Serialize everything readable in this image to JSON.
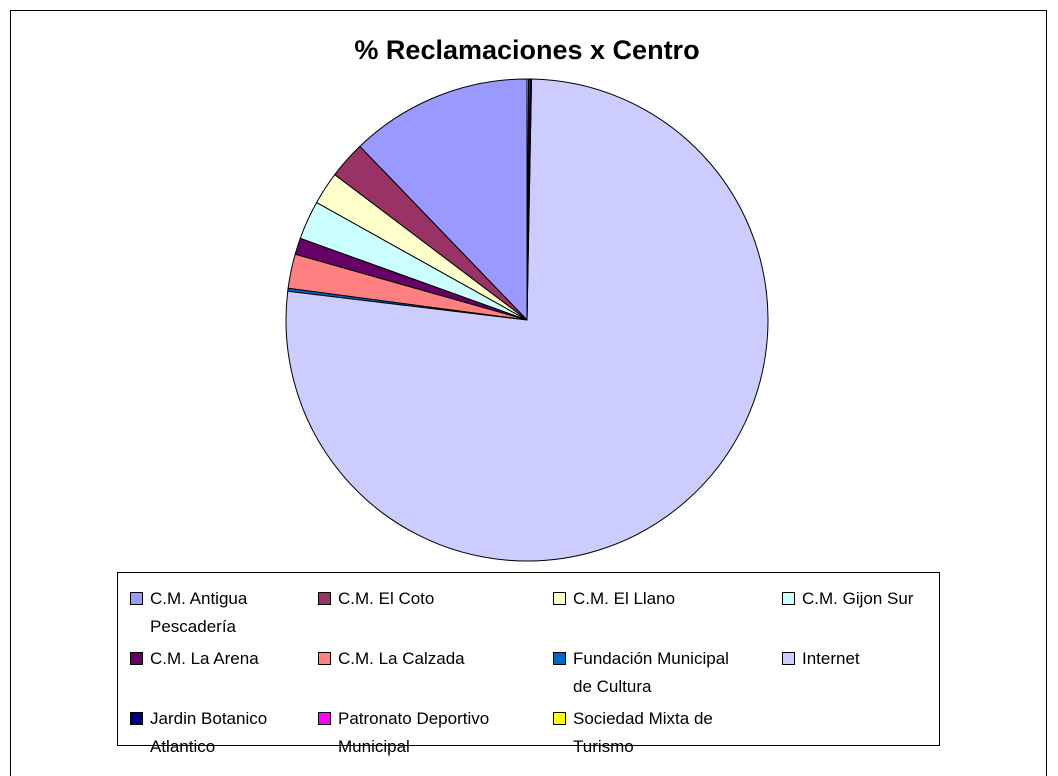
{
  "chart_data": {
    "type": "pie",
    "title": "% Reclamaciones x Centro",
    "categories": [
      "C.M. Antigua Pescadería",
      "C.M. El Coto",
      "C.M. El Llano",
      "C.M. Gijon Sur",
      "C.M. La Arena",
      "C.M. La Calzada",
      "Fundación Municipal de Cultura",
      "Internet",
      "Jardin Botanico Atlantico",
      "Patronato Deportivo Municipal",
      "Sociedad Mixta de Turismo"
    ],
    "values": [
      12.2,
      2.5,
      2.2,
      2.6,
      1.1,
      2.3,
      0.2,
      76.6,
      0.1,
      0.1,
      0.1
    ],
    "colors": [
      "#9999ff",
      "#993366",
      "#ffffcc",
      "#ccffff",
      "#660066",
      "#ff8080",
      "#0066cc",
      "#ccccff",
      "#000080",
      "#ff00ff",
      "#ffff00"
    ],
    "legend": "bottom"
  }
}
